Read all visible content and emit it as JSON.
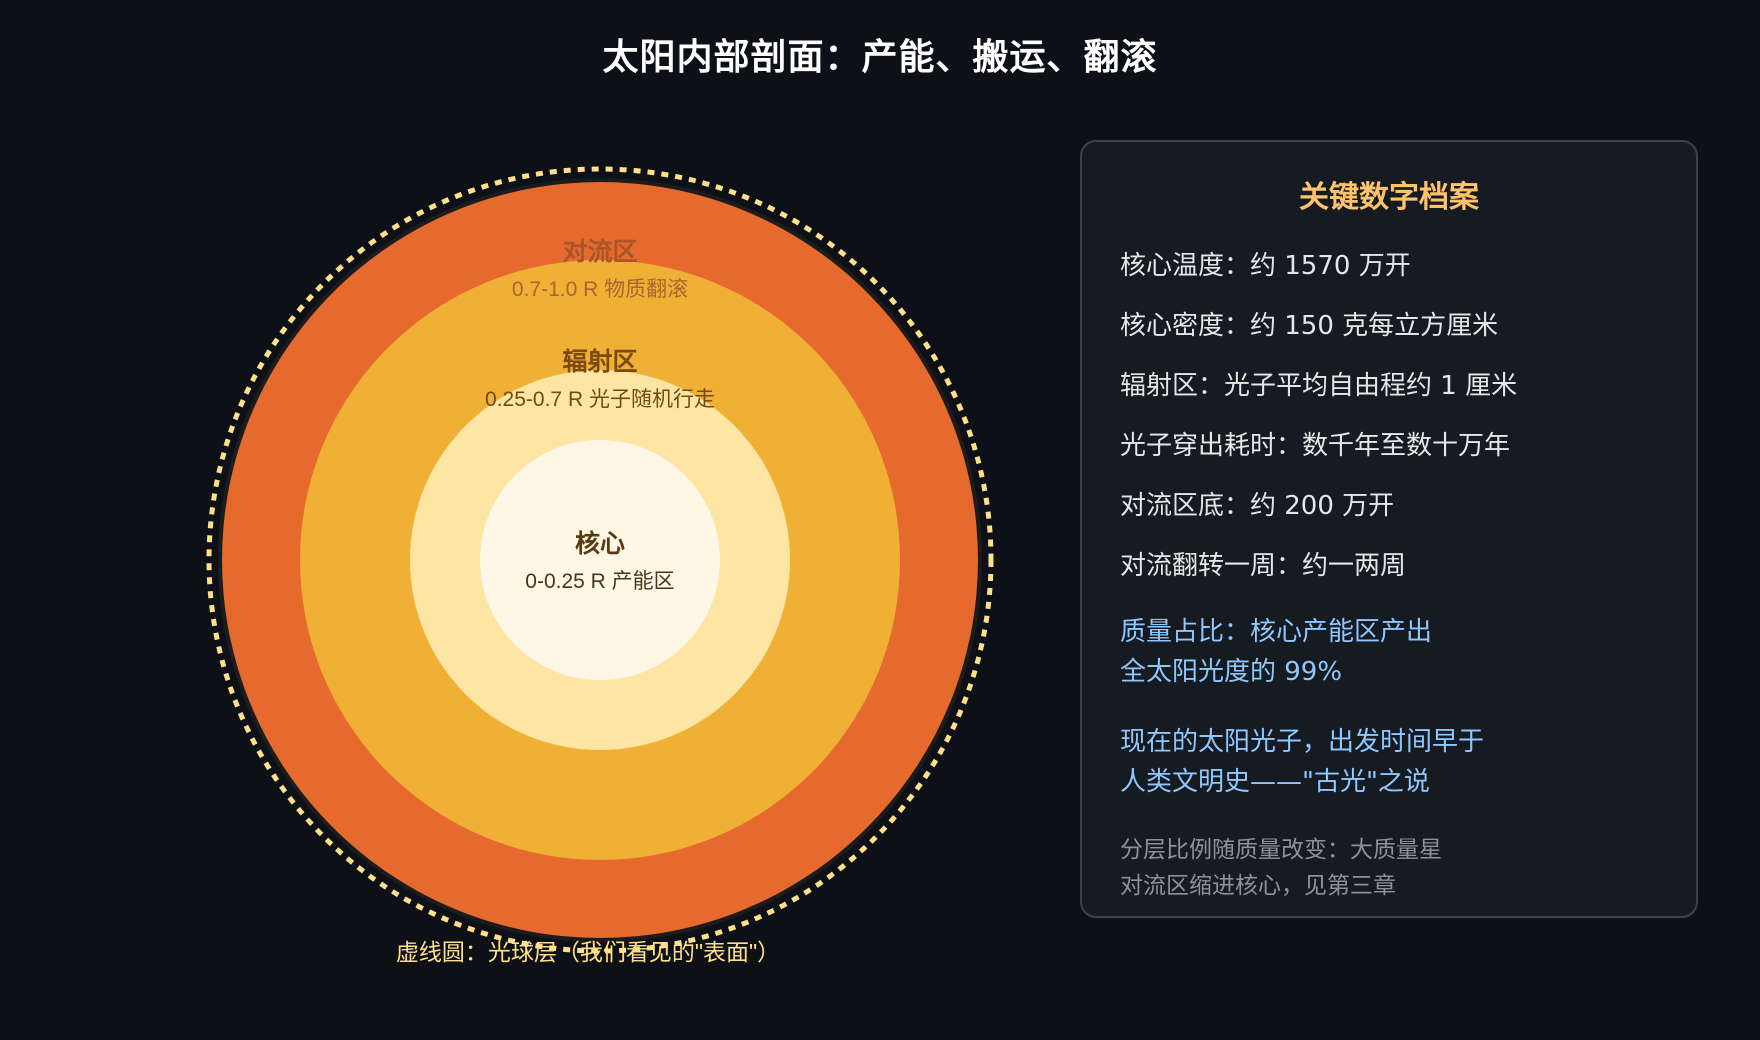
{
  "title": "太阳内部剖面：产能、搬运、翻滚",
  "layers": {
    "core": {
      "name": "核心",
      "range": "0-0.25 R 产能区"
    },
    "radiative": {
      "name": "辐射区",
      "range": "0.25-0.7 R 光子随机行走"
    },
    "convective": {
      "name": "对流区",
      "range": "0.7-1.0 R 物质翻滚"
    }
  },
  "photosphere_caption": "虚线圆：光球层（我们看见的\"表面\"）",
  "panel": {
    "title": "关键数字档案",
    "facts": [
      "核心温度：约 1570 万开",
      "核心密度：约 150 克每立方厘米",
      "辐射区：光子平均自由程约 1 厘米",
      "光子穿出耗时：数千年至数十万年",
      "对流区底：约 200 万开",
      "对流翻转一周：约一两周"
    ],
    "highlight_1": {
      "line1": "质量占比：核心产能区产出",
      "line2": "全太阳光度的 99%"
    },
    "highlight_2": {
      "line1": "现在的太阳光子，出发时间早于",
      "line2": "人类文明史——\"古光\"之说"
    },
    "footnote": {
      "line1": "分层比例随质量改变：大质量星",
      "line2": "对流区缩进核心，见第三章"
    }
  },
  "colors": {
    "background": "#0d1117",
    "convective": "#e66a2e",
    "radiative": "#f0b036",
    "radiative_inner": "#fde6a4",
    "core": "#fff7e6",
    "photosphere_dash": "#ffe08a",
    "panel_title": "#ffc46b",
    "highlight": "#8fc7ff"
  }
}
